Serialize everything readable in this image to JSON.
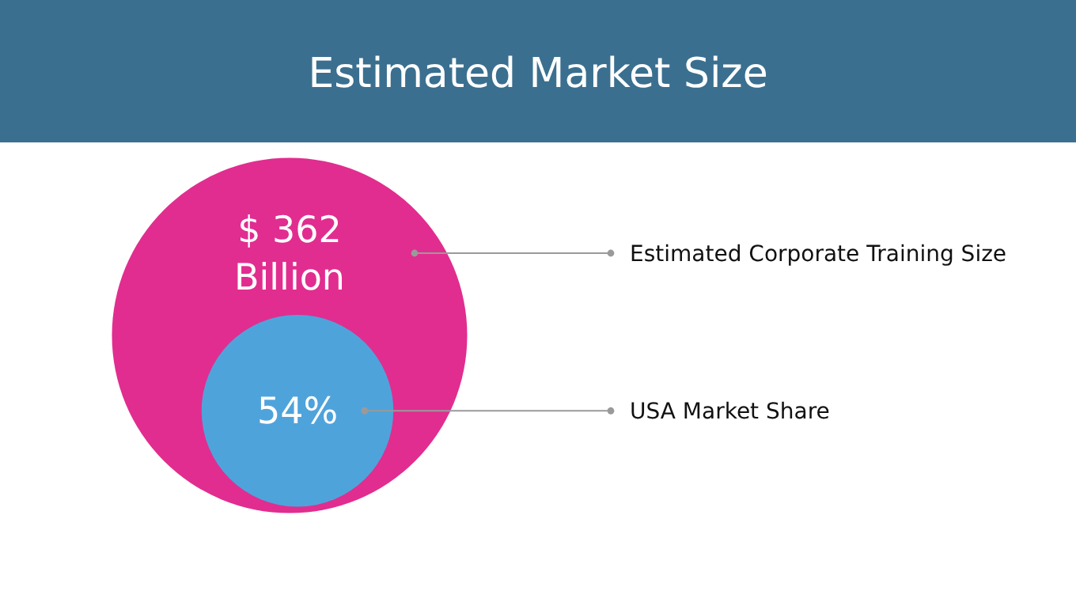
{
  "chart_data": {
    "type": "other",
    "title": "Estimated Market Size",
    "categories": [
      "Estimated Corporate Training Size",
      "USA Market Share"
    ],
    "values": [
      362,
      54
    ],
    "value_labels": [
      "$ 362\nBillion",
      "54%"
    ],
    "colors": [
      "#e12d8f",
      "#4fa3db"
    ]
  }
}
